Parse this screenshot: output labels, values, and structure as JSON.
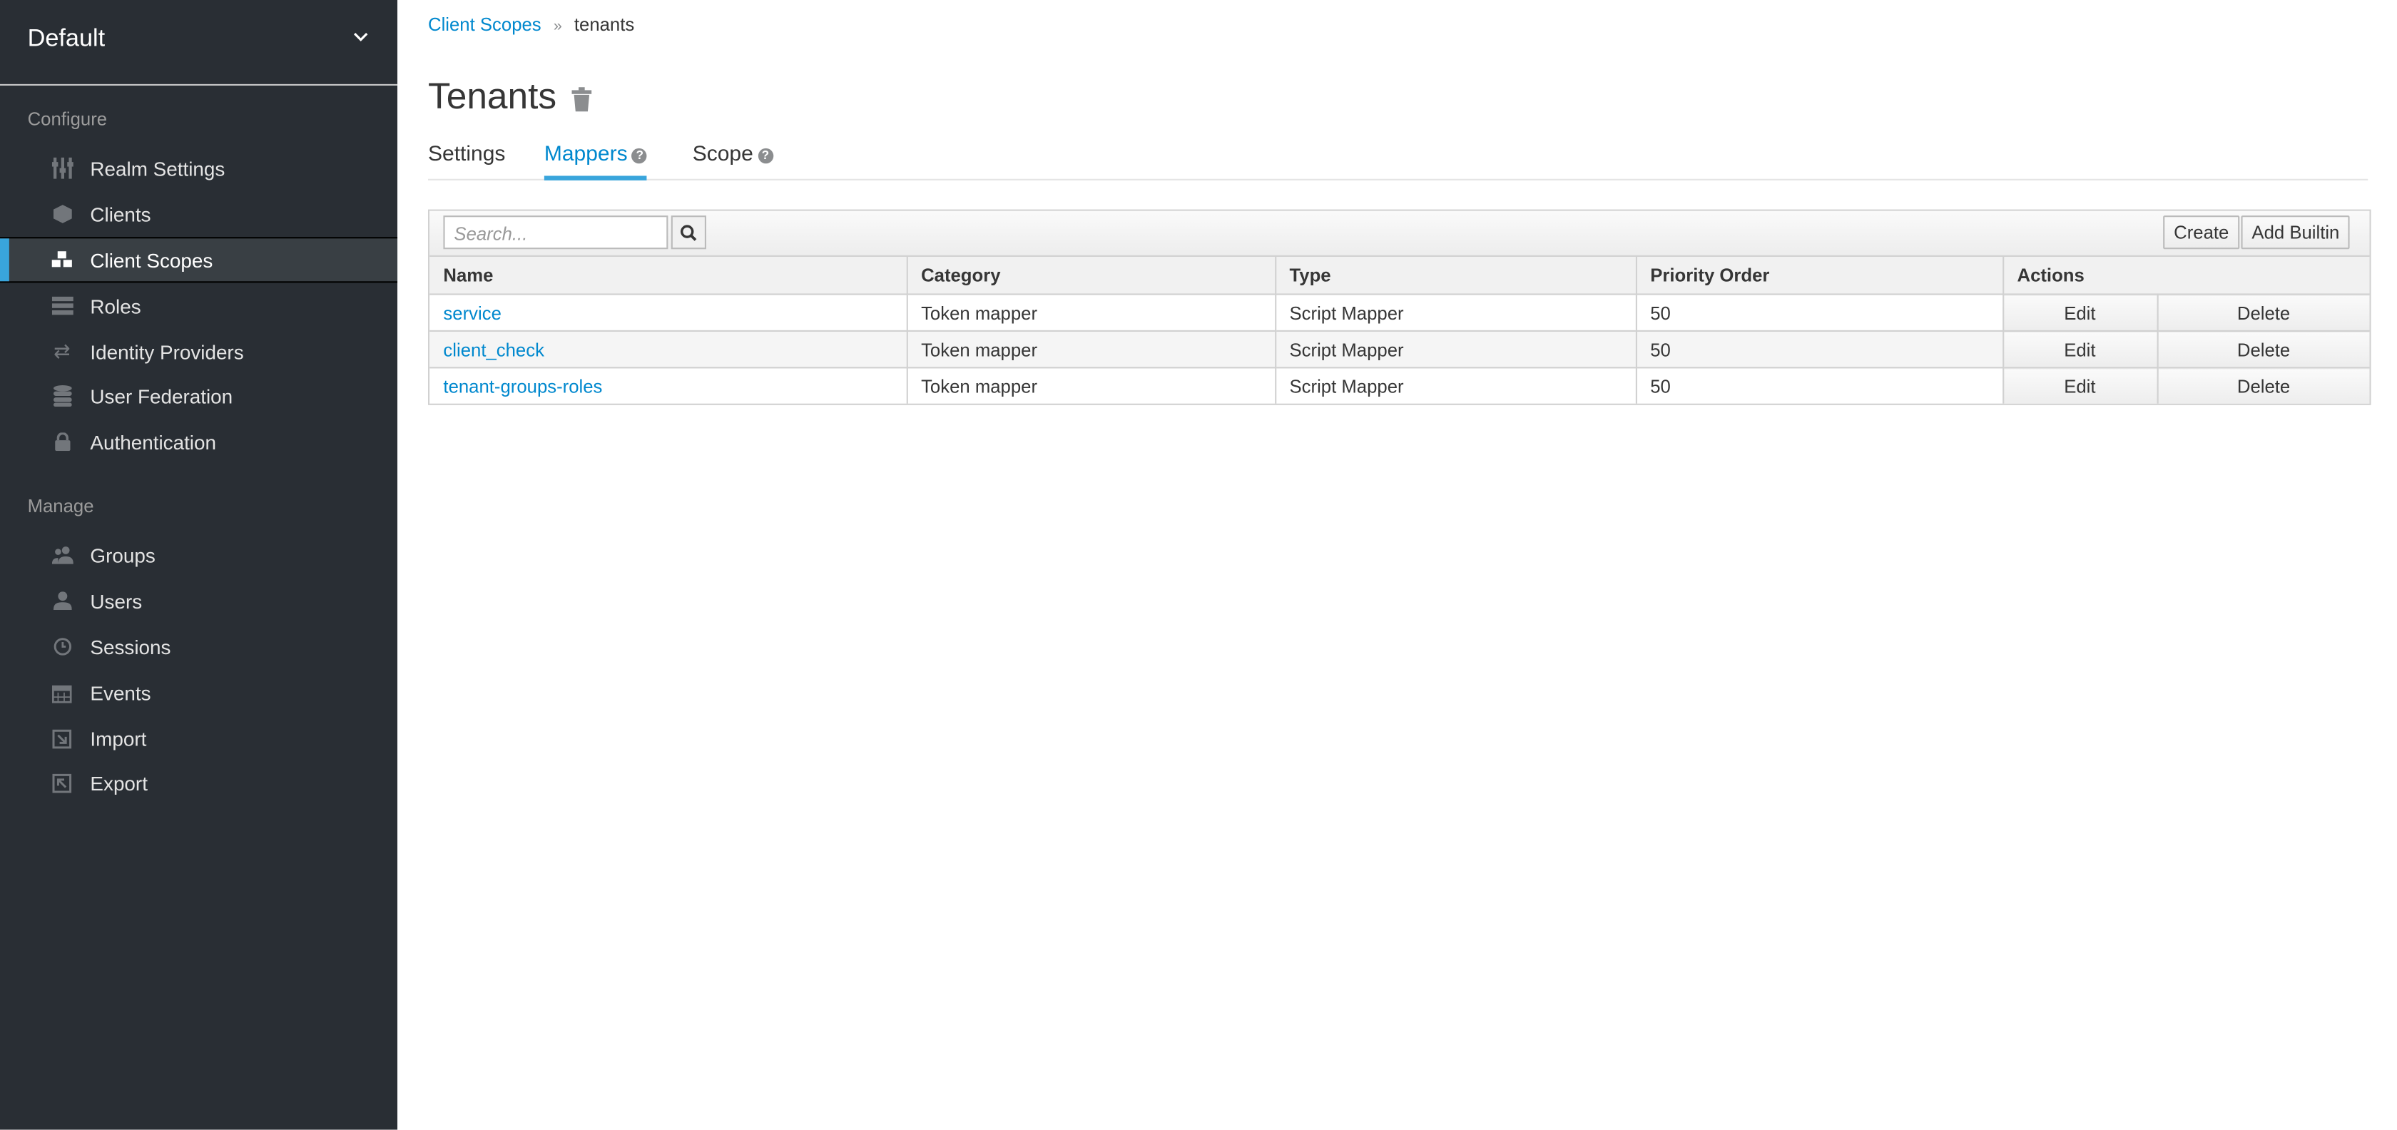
{
  "sidebar": {
    "realm": "Default",
    "configure_label": "Configure",
    "manage_label": "Manage",
    "configure_items": [
      {
        "label": "Realm Settings",
        "icon": "sliders-icon"
      },
      {
        "label": "Clients",
        "icon": "cube-icon"
      },
      {
        "label": "Client Scopes",
        "icon": "cubes-icon",
        "active": true
      },
      {
        "label": "Roles",
        "icon": "server-icon"
      },
      {
        "label": "Identity Providers",
        "icon": "exchange-icon"
      },
      {
        "label": "User Federation",
        "icon": "database-icon"
      },
      {
        "label": "Authentication",
        "icon": "lock-icon"
      }
    ],
    "manage_items": [
      {
        "label": "Groups",
        "icon": "users-icon"
      },
      {
        "label": "Users",
        "icon": "user-icon"
      },
      {
        "label": "Sessions",
        "icon": "clock-icon"
      },
      {
        "label": "Events",
        "icon": "calendar-icon"
      },
      {
        "label": "Import",
        "icon": "import-icon"
      },
      {
        "label": "Export",
        "icon": "export-icon"
      }
    ]
  },
  "breadcrumb": {
    "parent": "Client Scopes",
    "current": "tenants"
  },
  "page": {
    "title": "Tenants"
  },
  "tabs": [
    {
      "label": "Settings"
    },
    {
      "label": "Mappers",
      "active": true
    },
    {
      "label": "Scope"
    }
  ],
  "toolbar": {
    "search_placeholder": "Search...",
    "create": "Create",
    "add_builtin": "Add Builtin"
  },
  "table": {
    "headers": [
      "Name",
      "Category",
      "Type",
      "Priority Order",
      "Actions"
    ],
    "rows": [
      {
        "name": "service",
        "category": "Token mapper",
        "type": "Script Mapper",
        "priority": "50",
        "edit": "Edit",
        "delete": "Delete"
      },
      {
        "name": "client_check",
        "category": "Token mapper",
        "type": "Script Mapper",
        "priority": "50",
        "edit": "Edit",
        "delete": "Delete"
      },
      {
        "name": "tenant-groups-roles",
        "category": "Token mapper",
        "type": "Script Mapper",
        "priority": "50",
        "edit": "Edit",
        "delete": "Delete"
      }
    ]
  },
  "colors": {
    "sidebar": "#292e34",
    "accent": "#39a5dc",
    "link": "#0088ce"
  }
}
